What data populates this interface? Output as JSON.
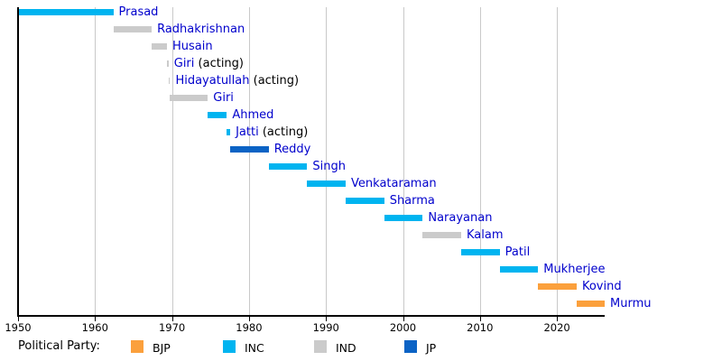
{
  "chart_data": {
    "type": "bar",
    "subtype": "horizontal-timeline-gantt",
    "title": "",
    "x_axis": {
      "min": 1950,
      "max": 2026.2,
      "ticks": [
        1950,
        1960,
        1970,
        1980,
        1990,
        2000,
        2010,
        2020
      ],
      "gridlines": true
    },
    "party_colors": {
      "BJP": "#fba03c",
      "INC": "#00b4f0",
      "IND": "#cbcbcb",
      "JP": "#0b63c5"
    },
    "label_color": "#0000cc",
    "series": [
      {
        "name": "Prasad",
        "suffix": "",
        "party": "INC",
        "start": 1950.07,
        "end": 1962.37
      },
      {
        "name": "Radhakrishnan",
        "suffix": "",
        "party": "IND",
        "start": 1962.37,
        "end": 1967.36
      },
      {
        "name": "Husain",
        "suffix": "",
        "party": "IND",
        "start": 1967.36,
        "end": 1969.34
      },
      {
        "name": "Giri",
        "suffix": "(acting)",
        "party": "IND",
        "start": 1969.34,
        "end": 1969.55
      },
      {
        "name": "Hidayatullah",
        "suffix": "(acting)",
        "party": "IND",
        "start": 1969.55,
        "end": 1969.65
      },
      {
        "name": "Giri",
        "suffix": "",
        "party": "IND",
        "start": 1969.65,
        "end": 1974.65
      },
      {
        "name": "Ahmed",
        "suffix": "",
        "party": "INC",
        "start": 1974.65,
        "end": 1977.12
      },
      {
        "name": "Jatti",
        "suffix": "(acting)",
        "party": "INC",
        "start": 1977.12,
        "end": 1977.56
      },
      {
        "name": "Reddy",
        "suffix": "",
        "party": "JP",
        "start": 1977.56,
        "end": 1982.56
      },
      {
        "name": "Singh",
        "suffix": "",
        "party": "INC",
        "start": 1982.56,
        "end": 1987.56
      },
      {
        "name": "Venkataraman",
        "suffix": "",
        "party": "INC",
        "start": 1987.56,
        "end": 1992.56
      },
      {
        "name": "Sharma",
        "suffix": "",
        "party": "INC",
        "start": 1992.56,
        "end": 1997.56
      },
      {
        "name": "Narayanan",
        "suffix": "",
        "party": "INC",
        "start": 1997.56,
        "end": 2002.56
      },
      {
        "name": "Kalam",
        "suffix": "",
        "party": "IND",
        "start": 2002.56,
        "end": 2007.56
      },
      {
        "name": "Patil",
        "suffix": "",
        "party": "INC",
        "start": 2007.56,
        "end": 2012.56
      },
      {
        "name": "Mukherjee",
        "suffix": "",
        "party": "INC",
        "start": 2012.56,
        "end": 2017.56
      },
      {
        "name": "Kovind",
        "suffix": "",
        "party": "BJP",
        "start": 2017.56,
        "end": 2022.56
      },
      {
        "name": "Murmu",
        "suffix": "",
        "party": "BJP",
        "start": 2022.56,
        "end": 2026.2
      }
    ],
    "legend": {
      "title": "Political Party:",
      "position": "bottom",
      "entries": [
        {
          "label": "BJP",
          "color": "#fba03c"
        },
        {
          "label": "INC",
          "color": "#00b4f0"
        },
        {
          "label": "IND",
          "color": "#cbcbcb"
        },
        {
          "label": "JP",
          "color": "#0b63c5"
        }
      ]
    }
  }
}
